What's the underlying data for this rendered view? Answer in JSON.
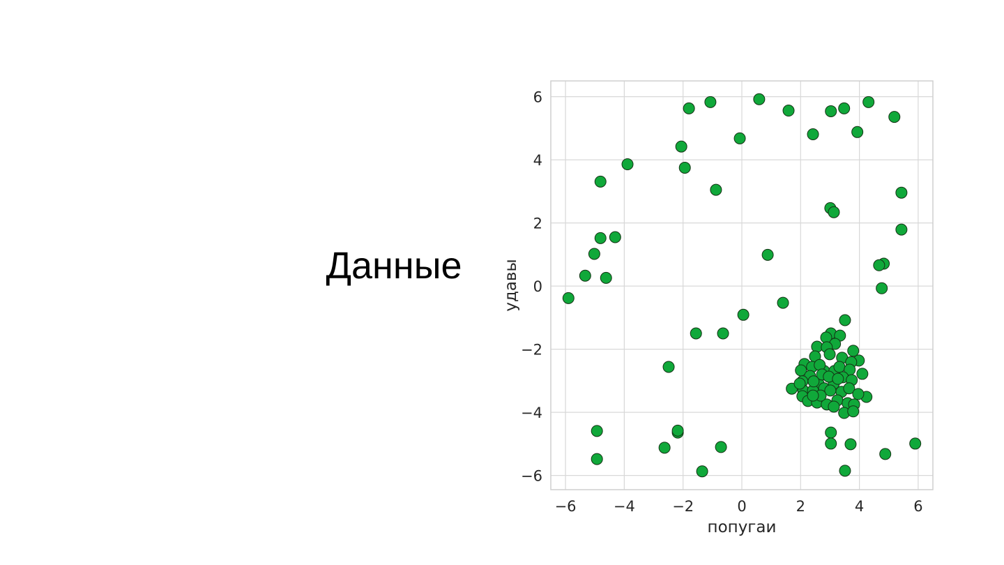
{
  "slide": {
    "title": "Данные"
  },
  "colors": {
    "marker_fill": "#10a83a",
    "marker_edge": "#143214",
    "grid": "#d8d8d8",
    "axis_frame": "#cfcfcf",
    "text": "#262626"
  },
  "chart_data": {
    "type": "scatter",
    "title": "",
    "xlabel": "попугаи",
    "ylabel": "удавы",
    "xlim": [
      -6.5,
      6.5
    ],
    "ylim": [
      -6.45,
      6.5
    ],
    "xticks": [
      -6,
      -4,
      -2,
      0,
      2,
      4,
      6
    ],
    "yticks": [
      -6,
      -4,
      -2,
      0,
      2,
      4,
      6
    ],
    "xtick_labels": [
      "−6",
      "−4",
      "−2",
      "0",
      "2",
      "4",
      "6"
    ],
    "ytick_labels": [
      "−6",
      "−4",
      "−2",
      "0",
      "2",
      "4",
      "6"
    ],
    "grid": true,
    "points": [
      [
        -5.9,
        -0.38
      ],
      [
        -5.33,
        0.33
      ],
      [
        -5.02,
        1.02
      ],
      [
        -4.81,
        1.52
      ],
      [
        -4.81,
        3.31
      ],
      [
        -4.62,
        0.26
      ],
      [
        -4.31,
        1.55
      ],
      [
        -3.89,
        3.86
      ],
      [
        -1.07,
        5.83
      ],
      [
        -1.8,
        5.63
      ],
      [
        -2.06,
        4.42
      ],
      [
        -1.94,
        3.75
      ],
      [
        -0.88,
        3.05
      ],
      [
        -0.07,
        4.68
      ],
      [
        0.59,
        5.92
      ],
      [
        1.59,
        5.56
      ],
      [
        2.42,
        4.81
      ],
      [
        3.03,
        5.54
      ],
      [
        3.48,
        5.63
      ],
      [
        4.31,
        5.83
      ],
      [
        5.19,
        5.36
      ],
      [
        3.93,
        4.88
      ],
      [
        5.43,
        2.96
      ],
      [
        5.43,
        1.79
      ],
      [
        3.01,
        2.47
      ],
      [
        3.13,
        2.34
      ],
      [
        0.88,
        0.99
      ],
      [
        4.83,
        0.71
      ],
      [
        4.67,
        0.66
      ],
      [
        4.76,
        -0.07
      ],
      [
        1.4,
        -0.53
      ],
      [
        0.05,
        -0.91
      ],
      [
        -1.56,
        -1.5
      ],
      [
        -0.64,
        -1.5
      ],
      [
        -2.49,
        -2.56
      ],
      [
        3.51,
        -1.08
      ],
      [
        -2.18,
        -4.64
      ],
      [
        -2.18,
        -4.58
      ],
      [
        -2.63,
        -5.12
      ],
      [
        -0.71,
        -5.1
      ],
      [
        -1.35,
        -5.87
      ],
      [
        -4.93,
        -4.59
      ],
      [
        -4.93,
        -5.48
      ],
      [
        3.03,
        -4.64
      ],
      [
        3.03,
        -4.99
      ],
      [
        3.7,
        -5.01
      ],
      [
        3.51,
        -5.85
      ],
      [
        4.88,
        -5.32
      ],
      [
        5.9,
        -4.99
      ],
      [
        4.24,
        -3.51
      ],
      [
        1.7,
        -3.25
      ],
      [
        3.03,
        -1.5
      ],
      [
        3.34,
        -1.57
      ],
      [
        2.87,
        -1.63
      ],
      [
        2.56,
        -1.92
      ],
      [
        3.17,
        -1.83
      ],
      [
        2.89,
        -1.94
      ],
      [
        3.79,
        -2.05
      ],
      [
        2.49,
        -2.23
      ],
      [
        2.99,
        -2.16
      ],
      [
        3.41,
        -2.27
      ],
      [
        3.98,
        -2.36
      ],
      [
        3.72,
        -2.41
      ],
      [
        2.13,
        -2.47
      ],
      [
        2.39,
        -2.56
      ],
      [
        2.01,
        -2.67
      ],
      [
        2.8,
        -2.69
      ],
      [
        3.15,
        -2.69
      ],
      [
        3.32,
        -2.56
      ],
      [
        3.67,
        -2.65
      ],
      [
        4.1,
        -2.78
      ],
      [
        2.65,
        -2.5
      ],
      [
        2.32,
        -2.85
      ],
      [
        2.06,
        -3.02
      ],
      [
        3.44,
        -2.89
      ],
      [
        3.74,
        -2.98
      ],
      [
        2.61,
        -3.09
      ],
      [
        3.13,
        -3.09
      ],
      [
        2.09,
        -3.31
      ],
      [
        2.42,
        -3.31
      ],
      [
        2.8,
        -3.24
      ],
      [
        3.39,
        -3.35
      ],
      [
        3.65,
        -3.24
      ],
      [
        3.96,
        -3.42
      ],
      [
        2.06,
        -3.49
      ],
      [
        2.25,
        -3.64
      ],
      [
        2.56,
        -3.69
      ],
      [
        2.89,
        -3.75
      ],
      [
        3.25,
        -3.62
      ],
      [
        3.6,
        -3.71
      ],
      [
        3.82,
        -3.75
      ],
      [
        3.48,
        -4.02
      ],
      [
        3.79,
        -3.97
      ],
      [
        3.13,
        -3.82
      ],
      [
        2.73,
        -2.8
      ],
      [
        2.96,
        -2.87
      ],
      [
        3.27,
        -2.94
      ],
      [
        2.44,
        -3.02
      ],
      [
        3.01,
        -3.31
      ],
      [
        2.68,
        -3.47
      ],
      [
        2.42,
        -3.47
      ],
      [
        1.97,
        -3.09
      ]
    ]
  }
}
